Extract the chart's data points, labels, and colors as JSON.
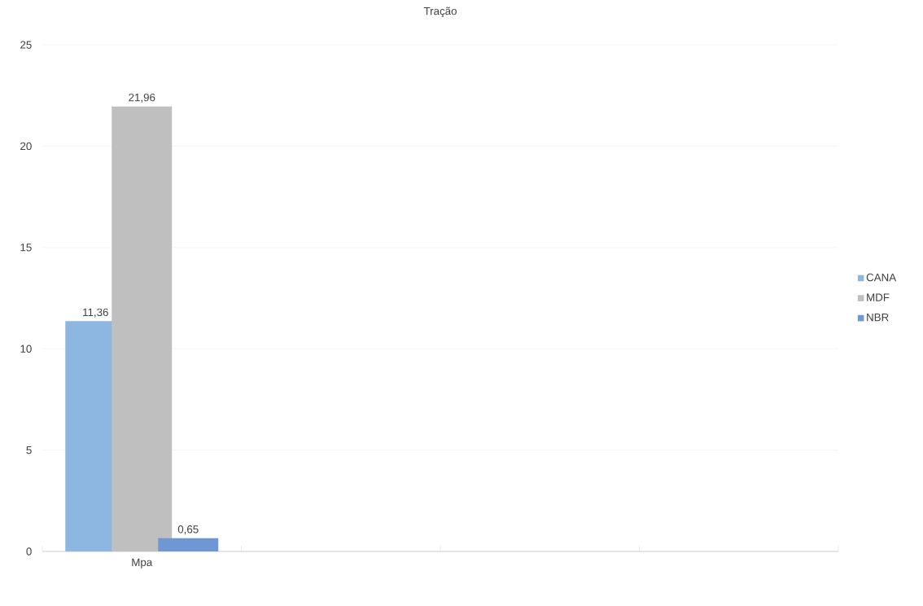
{
  "chart_data": {
    "type": "bar",
    "title": "Tração",
    "categories": [
      "Mpa",
      null,
      null,
      null
    ],
    "series": [
      {
        "name": "CANA",
        "color": "#8db7e1",
        "values": [
          11.36,
          null,
          null,
          null
        ],
        "value_labels": [
          "11,36",
          null,
          null,
          null
        ]
      },
      {
        "name": "MDF",
        "color": "#bfbfbf",
        "values": [
          21.96,
          null,
          null,
          null
        ],
        "value_labels": [
          "21,96",
          null,
          null,
          null
        ]
      },
      {
        "name": "NBR",
        "color": "#6f97d3",
        "values": [
          0.65,
          null,
          null,
          null
        ],
        "value_labels": [
          "0,65",
          null,
          null,
          null
        ]
      }
    ],
    "ylim": [
      0,
      25
    ],
    "yticks": [
      0,
      5,
      10,
      15,
      20,
      25
    ],
    "grid": "y",
    "legend": "right"
  }
}
